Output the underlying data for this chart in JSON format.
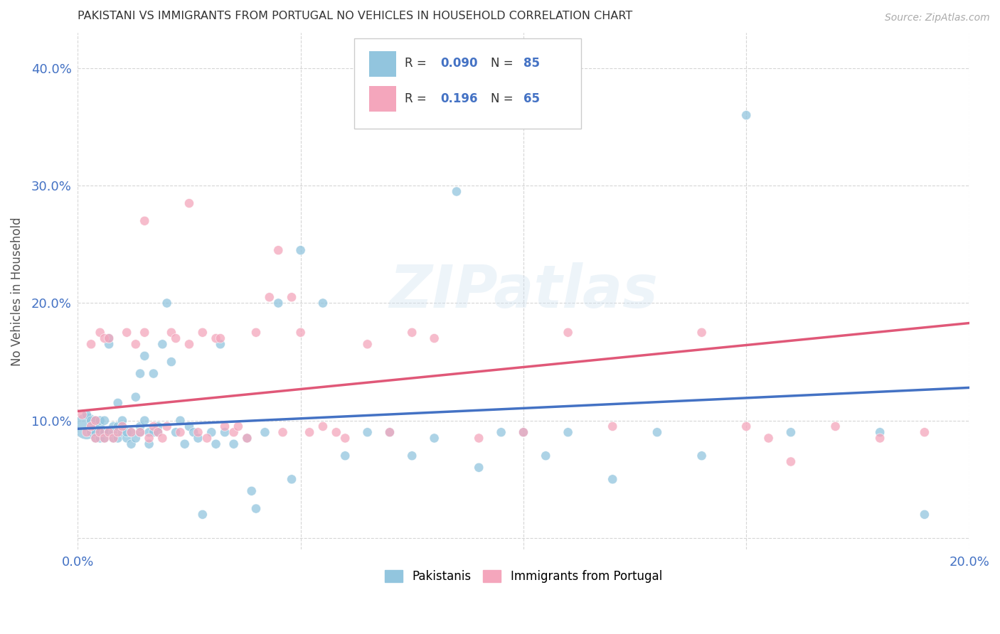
{
  "title": "PAKISTANI VS IMMIGRANTS FROM PORTUGAL NO VEHICLES IN HOUSEHOLD CORRELATION CHART",
  "source": "Source: ZipAtlas.com",
  "ylabel": "No Vehicles in Household",
  "xlim": [
    0.0,
    0.2
  ],
  "ylim": [
    -0.01,
    0.43
  ],
  "yticks": [
    0.0,
    0.1,
    0.2,
    0.3,
    0.4
  ],
  "xticks": [
    0.0,
    0.05,
    0.1,
    0.15,
    0.2
  ],
  "xtick_labels": [
    "0.0%",
    "",
    "",
    "",
    "20.0%"
  ],
  "ytick_labels": [
    "",
    "10.0%",
    "20.0%",
    "30.0%",
    "40.0%"
  ],
  "watermark": "ZIPatlas",
  "blue_color": "#92c5de",
  "pink_color": "#f4a6bc",
  "tick_color": "#4472c4",
  "grid_color": "#cccccc",
  "trendline_blue": "#4472c4",
  "trendline_pink": "#e05878",
  "pak_trend": [
    0.093,
    0.128
  ],
  "por_trend": [
    0.108,
    0.183
  ],
  "pakistanis_x": [
    0.002,
    0.002,
    0.003,
    0.003,
    0.004,
    0.004,
    0.004,
    0.005,
    0.005,
    0.005,
    0.005,
    0.006,
    0.006,
    0.006,
    0.006,
    0.007,
    0.007,
    0.007,
    0.008,
    0.008,
    0.008,
    0.009,
    0.009,
    0.009,
    0.01,
    0.01,
    0.01,
    0.011,
    0.011,
    0.012,
    0.012,
    0.013,
    0.013,
    0.014,
    0.014,
    0.014,
    0.015,
    0.015,
    0.016,
    0.016,
    0.017,
    0.017,
    0.018,
    0.018,
    0.019,
    0.02,
    0.021,
    0.022,
    0.023,
    0.024,
    0.025,
    0.026,
    0.027,
    0.028,
    0.03,
    0.031,
    0.032,
    0.033,
    0.035,
    0.038,
    0.039,
    0.04,
    0.042,
    0.045,
    0.048,
    0.05,
    0.055,
    0.06,
    0.065,
    0.07,
    0.075,
    0.08,
    0.085,
    0.09,
    0.095,
    0.1,
    0.105,
    0.11,
    0.12,
    0.13,
    0.14,
    0.15,
    0.16,
    0.18,
    0.19
  ],
  "pakistanis_y": [
    0.095,
    0.105,
    0.09,
    0.1,
    0.085,
    0.09,
    0.1,
    0.095,
    0.085,
    0.09,
    0.1,
    0.09,
    0.085,
    0.09,
    0.1,
    0.165,
    0.17,
    0.09,
    0.085,
    0.09,
    0.095,
    0.115,
    0.095,
    0.085,
    0.09,
    0.095,
    0.1,
    0.085,
    0.09,
    0.08,
    0.09,
    0.12,
    0.085,
    0.09,
    0.095,
    0.14,
    0.155,
    0.1,
    0.08,
    0.09,
    0.09,
    0.14,
    0.095,
    0.09,
    0.165,
    0.2,
    0.15,
    0.09,
    0.1,
    0.08,
    0.095,
    0.09,
    0.085,
    0.02,
    0.09,
    0.08,
    0.165,
    0.09,
    0.08,
    0.085,
    0.04,
    0.025,
    0.09,
    0.2,
    0.05,
    0.245,
    0.2,
    0.07,
    0.09,
    0.09,
    0.07,
    0.085,
    0.295,
    0.06,
    0.09,
    0.09,
    0.07,
    0.09,
    0.05,
    0.09,
    0.07,
    0.36,
    0.09,
    0.09,
    0.02
  ],
  "pakistanis_big_dot_idx": 0,
  "portugal_x": [
    0.001,
    0.002,
    0.003,
    0.003,
    0.004,
    0.004,
    0.005,
    0.005,
    0.006,
    0.006,
    0.007,
    0.007,
    0.008,
    0.009,
    0.01,
    0.011,
    0.012,
    0.013,
    0.014,
    0.015,
    0.016,
    0.017,
    0.018,
    0.019,
    0.02,
    0.021,
    0.022,
    0.023,
    0.025,
    0.027,
    0.029,
    0.031,
    0.033,
    0.035,
    0.038,
    0.04,
    0.043,
    0.046,
    0.05,
    0.055,
    0.06,
    0.065,
    0.07,
    0.075,
    0.08,
    0.09,
    0.1,
    0.11,
    0.12,
    0.14,
    0.15,
    0.155,
    0.16,
    0.17,
    0.18,
    0.19,
    0.045,
    0.048,
    0.025,
    0.028,
    0.032,
    0.036,
    0.015,
    0.052,
    0.058
  ],
  "portugal_y": [
    0.105,
    0.09,
    0.095,
    0.165,
    0.085,
    0.1,
    0.175,
    0.09,
    0.085,
    0.17,
    0.09,
    0.17,
    0.085,
    0.09,
    0.095,
    0.175,
    0.09,
    0.165,
    0.09,
    0.175,
    0.085,
    0.095,
    0.09,
    0.085,
    0.095,
    0.175,
    0.17,
    0.09,
    0.165,
    0.09,
    0.085,
    0.17,
    0.095,
    0.09,
    0.085,
    0.175,
    0.205,
    0.09,
    0.175,
    0.095,
    0.085,
    0.165,
    0.09,
    0.175,
    0.17,
    0.085,
    0.09,
    0.175,
    0.095,
    0.175,
    0.095,
    0.085,
    0.065,
    0.095,
    0.085,
    0.09,
    0.245,
    0.205,
    0.285,
    0.175,
    0.17,
    0.095,
    0.27,
    0.09,
    0.09
  ]
}
